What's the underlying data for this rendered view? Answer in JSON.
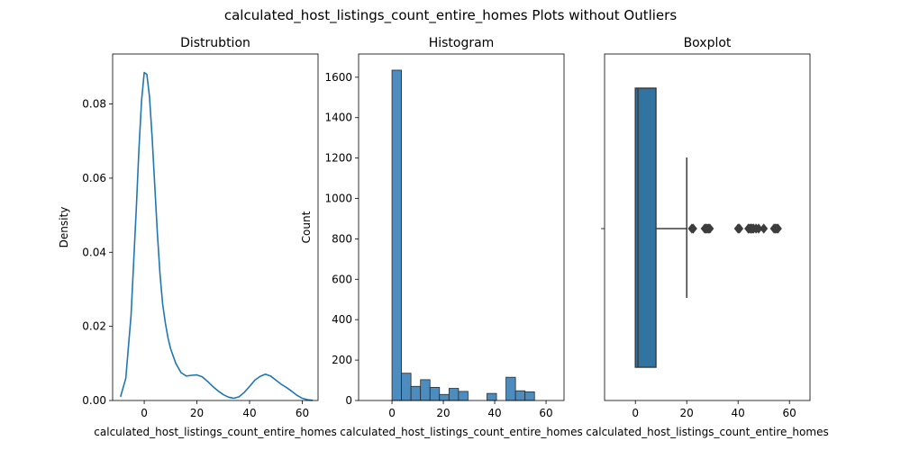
{
  "figure": {
    "suptitle": "calculated_host_listings_count_entire_homes Plots without Outliers"
  },
  "chart_data": [
    {
      "type": "line",
      "title": "Distrubtion",
      "xlabel": "calculated_host_listings_count_entire_homes",
      "ylabel": "Density",
      "xlim": [
        -12,
        66
      ],
      "ylim": [
        0,
        0.0935
      ],
      "xticks": [
        0,
        20,
        40,
        60
      ],
      "yticks": [
        0.0,
        0.02,
        0.04,
        0.06,
        0.08
      ],
      "ytick_labels": [
        "0.00",
        "0.02",
        "0.04",
        "0.06",
        "0.08"
      ],
      "color": "#1f77b4",
      "series": [
        {
          "x": [
            -9,
            -7,
            -5,
            -3,
            -2,
            -1,
            0,
            1,
            2,
            3,
            4,
            5,
            6,
            7,
            8,
            9,
            10,
            12,
            14,
            16,
            18,
            20,
            22,
            24,
            26,
            28,
            30,
            32,
            34,
            36,
            38,
            40,
            42,
            44,
            46,
            48,
            50,
            52,
            54,
            56,
            58,
            60,
            62,
            64
          ],
          "y": [
            0.001,
            0.006,
            0.023,
            0.052,
            0.068,
            0.081,
            0.0885,
            0.088,
            0.082,
            0.071,
            0.058,
            0.045,
            0.034,
            0.026,
            0.021,
            0.017,
            0.014,
            0.01,
            0.0075,
            0.0066,
            0.0068,
            0.0069,
            0.0064,
            0.0052,
            0.0038,
            0.0026,
            0.0016,
            0.0009,
            0.0006,
            0.001,
            0.0022,
            0.0038,
            0.0055,
            0.0065,
            0.0071,
            0.0066,
            0.0055,
            0.0044,
            0.0035,
            0.0025,
            0.0014,
            0.0006,
            0.0002,
            5e-05
          ]
        }
      ]
    },
    {
      "type": "bar",
      "title": "Histogram",
      "xlabel": "calculated_host_listings_count_entire_homes",
      "ylabel": "Count",
      "xlim": [
        -13,
        67
      ],
      "ylim": [
        0,
        1715
      ],
      "xticks": [
        0,
        20,
        40,
        60
      ],
      "yticks": [
        0,
        200,
        400,
        600,
        800,
        1000,
        1200,
        1400,
        1600
      ],
      "color": "#4c8cbf",
      "edgecolor": "#2a2a2a",
      "bins": [
        {
          "x0": 0.0,
          "x1": 3.7,
          "count": 1635
        },
        {
          "x0": 3.7,
          "x1": 7.4,
          "count": 135
        },
        {
          "x0": 7.4,
          "x1": 11.1,
          "count": 70
        },
        {
          "x0": 11.1,
          "x1": 14.8,
          "count": 103
        },
        {
          "x0": 14.8,
          "x1": 18.5,
          "count": 65
        },
        {
          "x0": 18.5,
          "x1": 22.2,
          "count": 30
        },
        {
          "x0": 22.2,
          "x1": 25.9,
          "count": 60
        },
        {
          "x0": 25.9,
          "x1": 29.6,
          "count": 45
        },
        {
          "x0": 29.6,
          "x1": 33.3,
          "count": 0
        },
        {
          "x0": 33.3,
          "x1": 37.0,
          "count": 0
        },
        {
          "x0": 37.0,
          "x1": 40.7,
          "count": 35
        },
        {
          "x0": 40.7,
          "x1": 44.4,
          "count": 0
        },
        {
          "x0": 44.4,
          "x1": 48.1,
          "count": 115
        },
        {
          "x0": 48.1,
          "x1": 51.8,
          "count": 48
        },
        {
          "x0": 51.8,
          "x1": 55.5,
          "count": 43
        }
      ]
    },
    {
      "type": "boxplot",
      "title": "Boxplot",
      "xlabel": "calculated_host_listings_count_entire_homes",
      "xlim": [
        -12,
        68
      ],
      "xticks": [
        0,
        20,
        40,
        60
      ],
      "color": "#3274a1",
      "box": {
        "whisker_low": 0,
        "q1": 0,
        "median": 1,
        "q3": 8,
        "whisker_high": 20
      },
      "outliers": [
        22,
        22.5,
        27,
        27.5,
        28,
        28.5,
        29,
        40,
        40.5,
        44,
        44.5,
        45,
        45.5,
        46,
        47,
        48,
        50,
        54,
        54.5,
        55,
        55.5
      ]
    }
  ]
}
